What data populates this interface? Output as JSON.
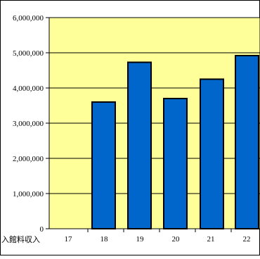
{
  "chart_data": {
    "type": "bar",
    "categories": [
      "17",
      "18",
      "19",
      "20",
      "21",
      "22"
    ],
    "values": [
      0,
      3600000,
      4730000,
      3700000,
      4250000,
      4920000
    ],
    "series": [
      {
        "name": "入館料収入",
        "values": [
          0,
          3600000,
          4730000,
          3700000,
          4250000,
          4920000
        ]
      }
    ],
    "y_ticks": [
      "0",
      "1,000,000",
      "2,000,000",
      "3,000,000",
      "4,000,000",
      "5,000,000",
      "6,000,000"
    ],
    "ylim": [
      0,
      6000000
    ],
    "grid": true,
    "legend_label": "入館料収入",
    "colors": {
      "plot_bg": "#ffff99",
      "bar_fill": "#0066cc",
      "bar_stroke": "#000000",
      "grid": "#000000"
    }
  }
}
